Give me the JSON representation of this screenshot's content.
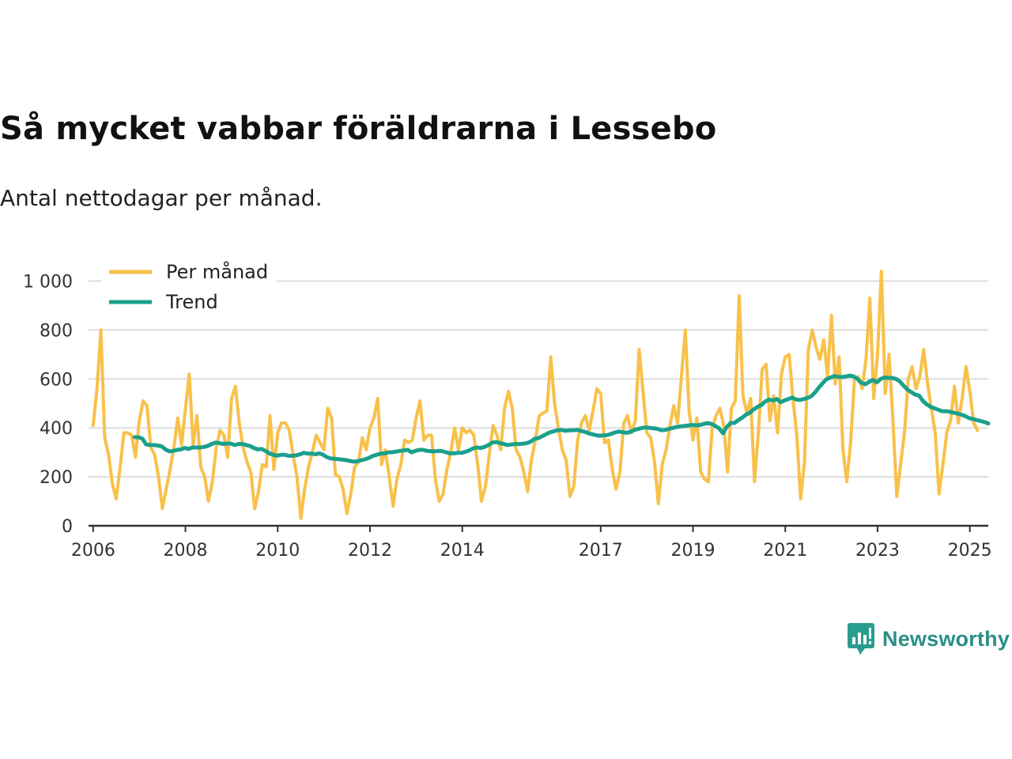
{
  "title": "Så mycket vabbar föräldrarna i Lessebo",
  "subtitle": "Antal nettodagar per månad.",
  "brand": {
    "name": "Newsworthy",
    "icon": "newsworthy-logo-icon",
    "color": "#2a9d8f"
  },
  "chart_data": {
    "type": "line",
    "title": "Så mycket vabbar föräldrarna i Lessebo",
    "subtitle": "Antal nettodagar per månad.",
    "xlabel": "",
    "ylabel": "",
    "xlim": [
      2005.9,
      2025.4
    ],
    "ylim": [
      0,
      1050
    ],
    "yticks": [
      0,
      200,
      400,
      600,
      800,
      1000
    ],
    "ytick_labels": [
      "0",
      "200",
      "400",
      "600",
      "800",
      "1 000"
    ],
    "xticks": [
      2006,
      2008,
      2010,
      2012,
      2014,
      2017,
      2019,
      2021,
      2023,
      2025
    ],
    "xtick_labels": [
      "2006",
      "2008",
      "2010",
      "2012",
      "2014",
      "2017",
      "2019",
      "2021",
      "2023",
      "2025"
    ],
    "grid": true,
    "legend_position": "top-left",
    "series": [
      {
        "name": "Per månad",
        "color": "#f8c14a",
        "x_start": 2006.0,
        "x_step": 0.0833333,
        "values": [
          410,
          560,
          800,
          360,
          290,
          170,
          110,
          240,
          380,
          380,
          370,
          280,
          430,
          510,
          490,
          320,
          290,
          200,
          70,
          150,
          230,
          320,
          440,
          330,
          480,
          620,
          330,
          450,
          240,
          200,
          100,
          180,
          320,
          390,
          370,
          280,
          520,
          570,
          420,
          320,
          260,
          220,
          70,
          140,
          250,
          240,
          450,
          230,
          380,
          420,
          420,
          390,
          290,
          200,
          30,
          150,
          240,
          300,
          370,
          340,
          310,
          480,
          440,
          210,
          200,
          150,
          50,
          130,
          240,
          260,
          360,
          310,
          400,
          440,
          520,
          250,
          310,
          200,
          80,
          190,
          250,
          350,
          340,
          350,
          440,
          510,
          350,
          370,
          370,
          190,
          100,
          130,
          230,
          300,
          400,
          310,
          400,
          380,
          390,
          370,
          250,
          100,
          160,
          290,
          410,
          370,
          310,
          480,
          550,
          480,
          310,
          280,
          220,
          140,
          270,
          350,
          450,
          460,
          470,
          690,
          500,
          400,
          310,
          270,
          120,
          160,
          350,
          420,
          450,
          390,
          470,
          560,
          540,
          340,
          350,
          230,
          150,
          220,
          420,
          450,
          380,
          430,
          720,
          550,
          380,
          360,
          260,
          90,
          250,
          310,
          410,
          490,
          420,
          610,
          800,
          470,
          350,
          440,
          220,
          190,
          180,
          400,
          450,
          480,
          410,
          220,
          480,
          510,
          940,
          530,
          460,
          520,
          180,
          380,
          640,
          660,
          430,
          530,
          380,
          620,
          690,
          700,
          520,
          370,
          110,
          260,
          720,
          800,
          730,
          680,
          760,
          610,
          860,
          580,
          690,
          310,
          180,
          340,
          600,
          610,
          560,
          680,
          930,
          520,
          700,
          1040,
          540,
          700,
          430,
          120,
          250,
          380,
          600,
          650,
          560,
          610,
          720,
          580,
          480,
          380,
          130,
          250,
          380,
          430,
          570,
          420,
          520,
          650,
          550,
          420,
          390
        ]
      },
      {
        "name": "Trend",
        "color": "#1aa08c",
        "x_start": 2006.9,
        "x_step": 0.0833333,
        "values": [
          362,
          362,
          356,
          332,
          330,
          330,
          328,
          325,
          312,
          304,
          306,
          310,
          312,
          318,
          314,
          320,
          320,
          320,
          322,
          326,
          334,
          340,
          338,
          334,
          336,
          336,
          330,
          334,
          334,
          330,
          326,
          318,
          312,
          314,
          306,
          296,
          290,
          286,
          290,
          290,
          286,
          286,
          288,
          292,
          298,
          295,
          295,
          292,
          296,
          290,
          280,
          275,
          274,
          272,
          270,
          268,
          265,
          262,
          264,
          268,
          272,
          278,
          286,
          290,
          295,
          296,
          300,
          300,
          303,
          306,
          308,
          310,
          300,
          306,
          310,
          310,
          306,
          305,
          304,
          306,
          305,
          300,
          296,
          296,
          298,
          298,
          302,
          308,
          316,
          320,
          318,
          322,
          330,
          340,
          342,
          338,
          334,
          330,
          332,
          334,
          334,
          335,
          338,
          344,
          355,
          358,
          366,
          374,
          382,
          386,
          390,
          392,
          388,
          390,
          390,
          392,
          388,
          384,
          378,
          374,
          370,
          368,
          370,
          371,
          376,
          382,
          385,
          382,
          380,
          384,
          392,
          396,
          400,
          402,
          400,
          398,
          396,
          390,
          392,
          396,
          400,
          404,
          406,
          408,
          410,
          412,
          410,
          412,
          416,
          420,
          416,
          408,
          398,
          378,
          404,
          420,
          420,
          432,
          442,
          454,
          462,
          476,
          486,
          494,
          508,
          516,
          512,
          518,
          505,
          512,
          518,
          524,
          516,
          514,
          518,
          522,
          530,
          546,
          566,
          584,
          600,
          606,
          612,
          608,
          608,
          610,
          614,
          610,
          600,
          584,
          578,
          588,
          596,
          586,
          600,
          606,
          604,
          604,
          600,
          590,
          572,
          556,
          546,
          536,
          532,
          510,
          496,
          486,
          480,
          474,
          468,
          468,
          466,
          462,
          458,
          454,
          448,
          440,
          436,
          432,
          428,
          424,
          418
        ]
      }
    ]
  }
}
